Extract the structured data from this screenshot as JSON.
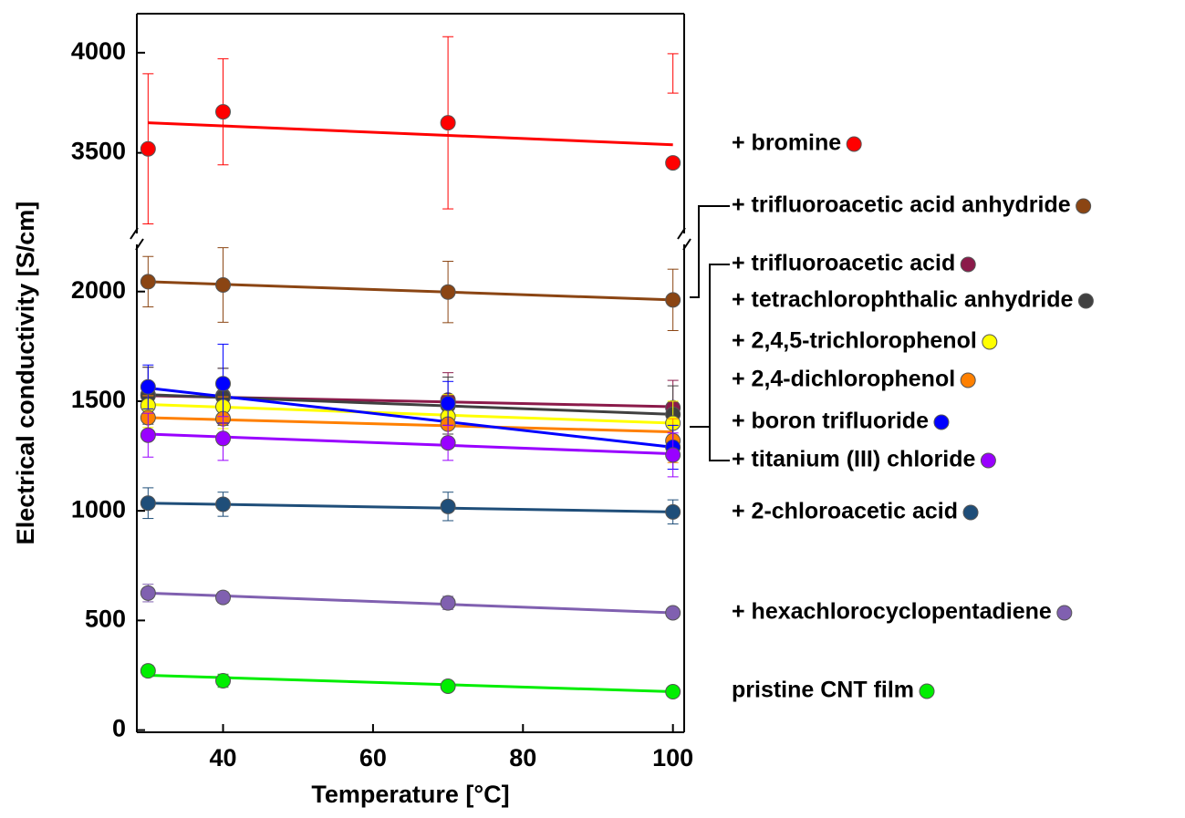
{
  "chart_data": {
    "type": "line",
    "x_label": "Temperature [°C]",
    "y_label": "Electrical conductivity [S/cm]",
    "x": [
      30,
      40,
      70,
      100
    ],
    "fit_x": [
      30,
      100
    ],
    "xlim": [
      28.5,
      101.5
    ],
    "xticks": [
      40,
      60,
      80,
      100
    ],
    "ylim": [
      -10,
      4195
    ],
    "ybreak": [
      2240,
      3070
    ],
    "yticks": [
      0,
      500,
      1000,
      1500,
      2000,
      3500,
      4000
    ],
    "series": [
      {
        "name": "+ bromine",
        "color": "#ff0000",
        "values": [
          3520,
          3705,
          3650,
          3450
        ],
        "errors": [
          375,
          265,
          430,
          545
        ],
        "fit": [
          3650,
          3540
        ]
      },
      {
        "name": "+ trifluoroacetic acid anhydride",
        "color": "#8b4513",
        "values": [
          2045,
          2030,
          1998,
          1962
        ],
        "errors": [
          115,
          170,
          140,
          140
        ],
        "fit": [
          2045,
          1962
        ]
      },
      {
        "name": "+ trifluoroacetic acid",
        "color": "#8b1a4a",
        "values": [
          1530,
          1525,
          1505,
          1470
        ],
        "errors": [
          125,
          125,
          125,
          125
        ],
        "fit": [
          1525,
          1475
        ]
      },
      {
        "name": "+ tetrachlorophthalic anhydride",
        "color": "#404040",
        "values": [
          1525,
          1520,
          1480,
          1440
        ],
        "errors": [
          130,
          130,
          130,
          130
        ],
        "fit": [
          1530,
          1440
        ]
      },
      {
        "name": "+ 2,4,5-trichlorophenol",
        "color": "#ffff00",
        "values": [
          1480,
          1475,
          1430,
          1400
        ],
        "errors": [
          100,
          100,
          100,
          100
        ],
        "fit": [
          1485,
          1400
        ]
      },
      {
        "name": "+ 2,4-dichlorophenol",
        "color": "#ff8000",
        "values": [
          1425,
          1420,
          1395,
          1320
        ],
        "errors": [
          100,
          100,
          100,
          100
        ],
        "fit": [
          1425,
          1360
        ]
      },
      {
        "name": "+ boron trifluoride",
        "color": "#0000ff",
        "values": [
          1565,
          1580,
          1490,
          1290
        ],
        "errors": [
          100,
          180,
          100,
          100
        ],
        "fit": [
          1560,
          1290
        ]
      },
      {
        "name": "+ titanium (III) chloride",
        "color": "#9900ff",
        "values": [
          1345,
          1330,
          1310,
          1255
        ],
        "errors": [
          100,
          100,
          80,
          100
        ],
        "fit": [
          1350,
          1260
        ]
      },
      {
        "name": "+ 2-chloroacetic acid",
        "color": "#1f4e79",
        "values": [
          1035,
          1030,
          1020,
          995
        ],
        "errors": [
          70,
          55,
          65,
          55
        ],
        "fit": [
          1035,
          995
        ]
      },
      {
        "name": "+ hexachlorocyclopentadiene",
        "color": "#8060b0",
        "values": [
          625,
          605,
          580,
          535
        ],
        "errors": [
          40,
          25,
          30,
          15
        ],
        "fit": [
          625,
          535
        ]
      },
      {
        "name": "pristine CNT film",
        "color": "#00ee00",
        "values": [
          270,
          225,
          200,
          175
        ],
        "errors": [
          25,
          30,
          20,
          15
        ],
        "fit": [
          250,
          175
        ]
      }
    ]
  }
}
